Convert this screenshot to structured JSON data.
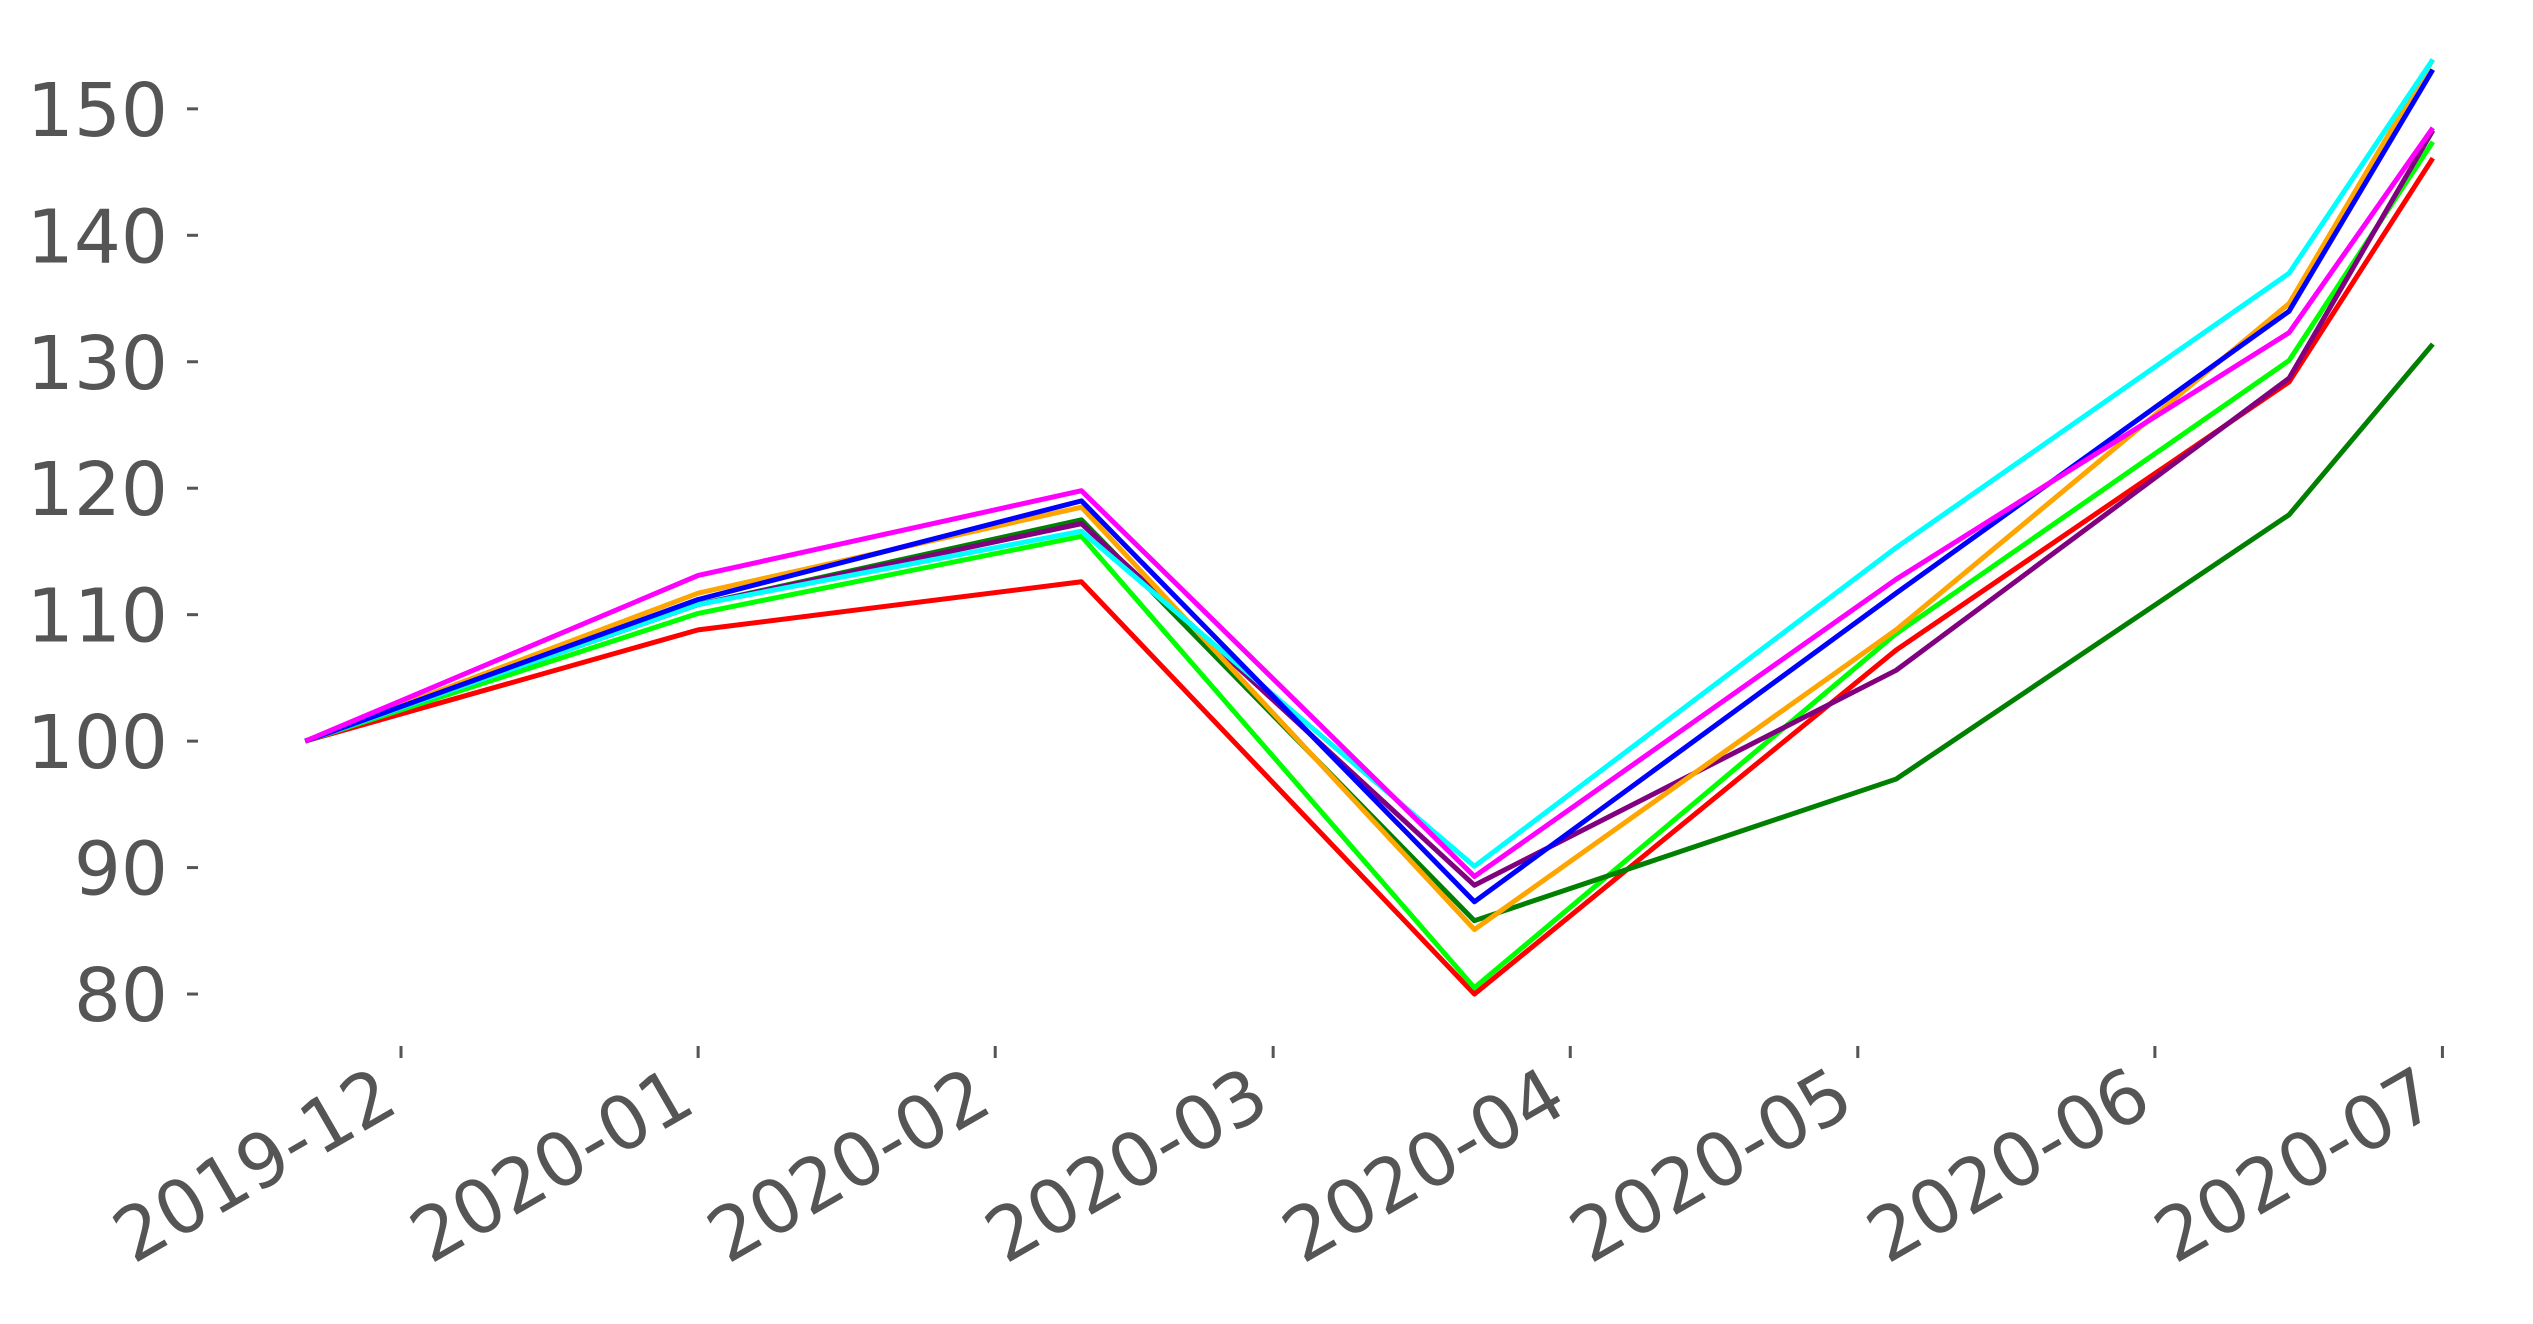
{
  "chart_data": {
    "type": "line",
    "x": [
      "2019-11-21",
      "2020-01-01",
      "2020-02-10",
      "2020-03-22",
      "2020-05-05",
      "2020-06-15",
      "2020-06-30"
    ],
    "series": [
      {
        "color": "#ff0000",
        "values": [
          100,
          108.8,
          112.6,
          80,
          107.2,
          128.4,
          146.1
        ]
      },
      {
        "color": "#00ff00",
        "values": [
          100,
          110.1,
          116.2,
          80.5,
          108.5,
          130.1,
          147.4
        ]
      },
      {
        "color": "#008000",
        "values": [
          100,
          110.8,
          117.5,
          85.8,
          97.0,
          117.9,
          131.4
        ]
      },
      {
        "color": "#800080",
        "values": [
          100,
          110.8,
          117.2,
          88.6,
          105.6,
          128.7,
          148.3
        ]
      },
      {
        "color": "#ffa500",
        "values": [
          100,
          111.7,
          118.5,
          85.1,
          108.8,
          134.6,
          153.9
        ]
      },
      {
        "color": "#00ffff",
        "values": [
          100,
          110.8,
          116.6,
          90.1,
          115.3,
          137.0,
          153.9
        ]
      },
      {
        "color": "#0000ff",
        "values": [
          100,
          111.2,
          119.0,
          87.3,
          111.7,
          134.0,
          153.1
        ]
      },
      {
        "color": "#ff00ff",
        "values": [
          100,
          113.1,
          119.8,
          89.3,
          112.8,
          132.3,
          148.5
        ]
      }
    ],
    "xlim": [
      "2019-11-19",
      "2020-07-02"
    ],
    "xticks": [
      {
        "value": "2019-12-01",
        "label": "2019-12"
      },
      {
        "value": "2020-01-01",
        "label": "2020-01"
      },
      {
        "value": "2020-02-01",
        "label": "2020-02"
      },
      {
        "value": "2020-03-01",
        "label": "2020-03"
      },
      {
        "value": "2020-04-01",
        "label": "2020-04"
      },
      {
        "value": "2020-05-01",
        "label": "2020-05"
      },
      {
        "value": "2020-06-01",
        "label": "2020-06"
      },
      {
        "value": "2020-07-01",
        "label": "2020-07"
      }
    ],
    "ylim": [
      75.1,
      154.1
    ],
    "yticks": [
      80,
      90,
      100,
      110,
      120,
      130,
      140,
      150
    ],
    "grid": false
  }
}
